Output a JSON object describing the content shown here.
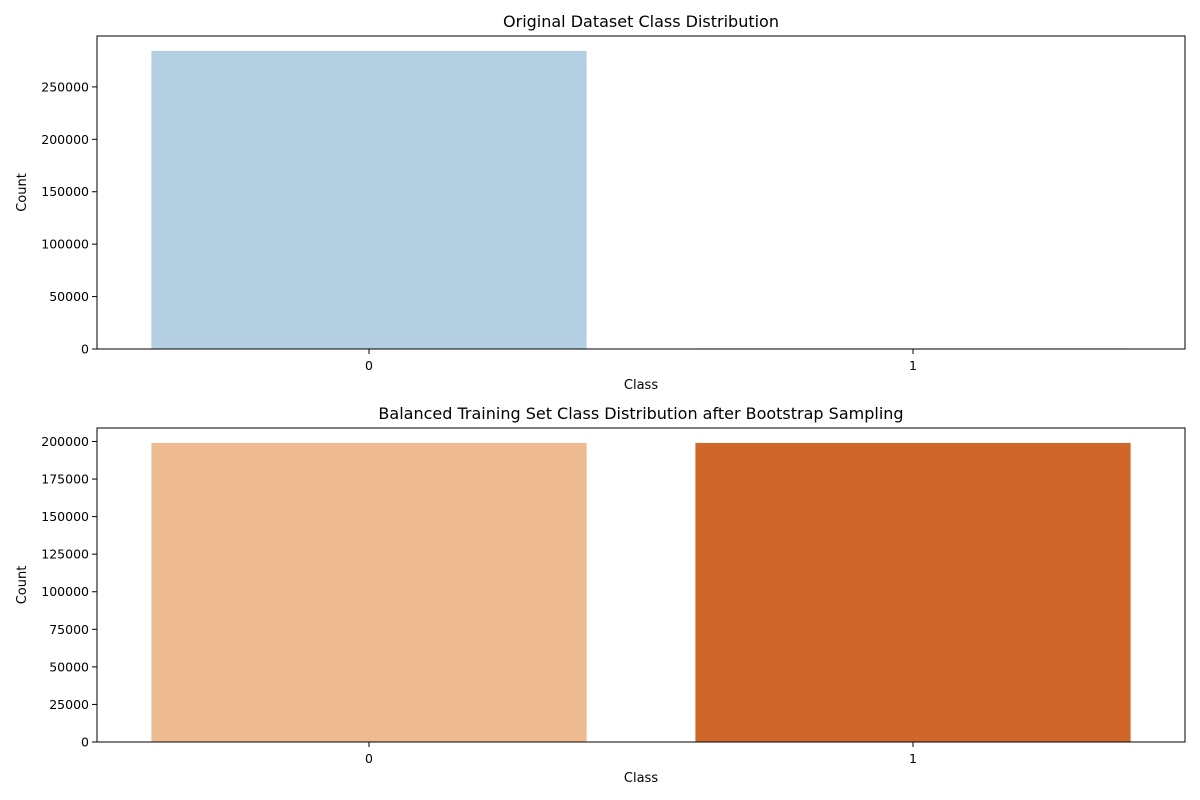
{
  "chart_data": [
    {
      "type": "bar",
      "title": "Original Dataset Class Distribution",
      "xlabel": "Class",
      "ylabel": "Count",
      "categories": [
        "0",
        "1"
      ],
      "values": [
        284315,
        492
      ],
      "colors": [
        "#b3cfe1",
        "#08306b"
      ],
      "ylim": [
        0,
        298531
      ],
      "yticks": [
        0,
        50000,
        100000,
        150000,
        200000,
        250000
      ],
      "grid": false
    },
    {
      "type": "bar",
      "title": "Balanced Training Set Class Distribution after Bootstrap Sampling",
      "xlabel": "Class",
      "ylabel": "Count",
      "categories": [
        "0",
        "1"
      ],
      "values": [
        199020,
        199020
      ],
      "colors": [
        "#edbb8f",
        "#cf672b"
      ],
      "ylim": [
        0,
        208971
      ],
      "yticks": [
        0,
        25000,
        50000,
        75000,
        100000,
        125000,
        150000,
        175000,
        200000
      ],
      "grid": false
    }
  ]
}
